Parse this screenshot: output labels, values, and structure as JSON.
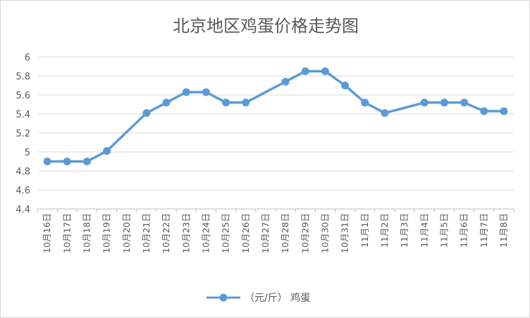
{
  "chart_data": {
    "type": "line",
    "title": "北京地区鸡蛋价格走势图",
    "xlabel": "",
    "ylabel": "",
    "categories": [
      "10月16日",
      "10月17日",
      "10月18日",
      "10月19日",
      "10月20日",
      "10月21日",
      "10月22日",
      "10月23日",
      "10月24日",
      "10月25日",
      "10月26日",
      "10月27日",
      "10月28日",
      "10月29日",
      "10月30日",
      "10月31日",
      "11月1日",
      "11月2日",
      "11月3日",
      "11月4日",
      "11月5日",
      "11月6日",
      "11月7日",
      "11月8日"
    ],
    "series": [
      {
        "name": "（元/斤） 鸡蛋",
        "color": "#5b9bd5",
        "values": [
          4.9,
          4.9,
          4.9,
          5.01,
          null,
          5.41,
          5.52,
          5.63,
          5.63,
          5.52,
          5.52,
          null,
          5.74,
          5.85,
          5.85,
          5.7,
          5.52,
          5.41,
          null,
          5.52,
          5.52,
          5.52,
          5.43,
          5.43
        ]
      }
    ],
    "ylim": [
      4.4,
      6
    ],
    "yticks": [
      "4.4",
      "4.6",
      "4.8",
      "5",
      "5.2",
      "5.4",
      "5.6",
      "5.8",
      "6"
    ],
    "grid": true,
    "legend": "bottom"
  }
}
